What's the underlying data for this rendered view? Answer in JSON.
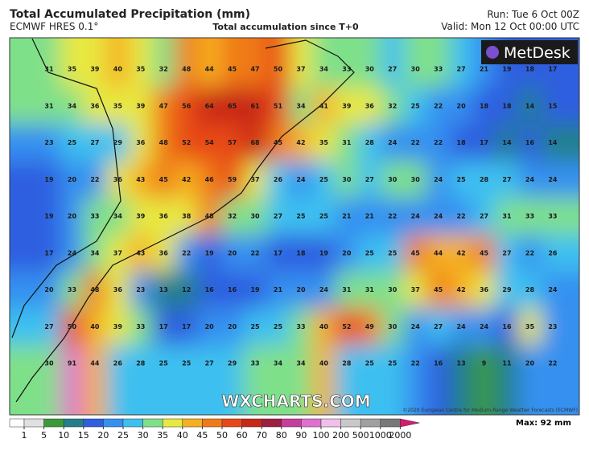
{
  "header": {
    "title": "Total Accumulated Precipitation (mm)",
    "model": "ECMWF HRES 0.1°",
    "subtitle": "Total accumulation since T+0",
    "run": "Run: Tue 6 Oct 00Z",
    "valid": "Valid: Mon 12 Oct 00:00 UTC"
  },
  "map": {
    "rows": [
      [
        31,
        35,
        39,
        40,
        35,
        32,
        48,
        44,
        45,
        47,
        50,
        37,
        34,
        33,
        30,
        27,
        30,
        33,
        27,
        21,
        19,
        18,
        17
      ],
      [
        31,
        34,
        36,
        35,
        39,
        47,
        56,
        64,
        65,
        61,
        51,
        34,
        41,
        39,
        36,
        32,
        25,
        22,
        20,
        18,
        18,
        14,
        15
      ],
      [
        23,
        25,
        27,
        29,
        36,
        48,
        52,
        54,
        57,
        68,
        45,
        42,
        35,
        31,
        28,
        24,
        22,
        22,
        18,
        17,
        14,
        16,
        14
      ],
      [
        19,
        20,
        22,
        36,
        43,
        45,
        42,
        46,
        59,
        37,
        26,
        24,
        25,
        30,
        27,
        30,
        30,
        24,
        25,
        28,
        27,
        24,
        24
      ],
      [
        19,
        20,
        33,
        34,
        39,
        36,
        38,
        48,
        32,
        30,
        27,
        25,
        25,
        21,
        21,
        22,
        24,
        24,
        22,
        27,
        31,
        33,
        33
      ],
      [
        17,
        24,
        34,
        37,
        43,
        36,
        22,
        19,
        20,
        22,
        17,
        18,
        19,
        20,
        25,
        25,
        45,
        44,
        42,
        45,
        27,
        22,
        26
      ],
      [
        20,
        33,
        48,
        36,
        23,
        13,
        12,
        16,
        16,
        19,
        21,
        20,
        24,
        31,
        31,
        30,
        37,
        45,
        42,
        36,
        29,
        28,
        24
      ],
      [
        27,
        50,
        40,
        39,
        33,
        17,
        17,
        20,
        20,
        25,
        25,
        33,
        40,
        52,
        49,
        30,
        24,
        27,
        24,
        24,
        16,
        35,
        23
      ],
      [
        30,
        91,
        44,
        26,
        28,
        25,
        25,
        27,
        29,
        33,
        34,
        34,
        40,
        28,
        25,
        25,
        22,
        16,
        13,
        9,
        11,
        20,
        22
      ]
    ]
  },
  "colorbar": {
    "ticks": [
      1,
      5,
      10,
      15,
      20,
      25,
      30,
      35,
      40,
      45,
      50,
      60,
      70,
      80,
      90,
      100,
      200,
      500,
      1000,
      2000
    ],
    "colors": [
      "#ffffff",
      "#e0e0e0",
      "#3a9a3a",
      "#23808a",
      "#2f5fe0",
      "#3590f0",
      "#3cc0f0",
      "#7fe08a",
      "#e8e840",
      "#f5b020",
      "#f07a18",
      "#e84818",
      "#c82818",
      "#a01c40",
      "#c83ca0",
      "#e070d0",
      "#f0c0e8",
      "#c8c8c8",
      "#a0a0a0",
      "#787878",
      "#d81b6e"
    ],
    "max_label": "Max: 92 mm"
  },
  "branding": {
    "logo": "MetDesk",
    "watermark": "WXCHARTS.COM",
    "credit": "©2020 European Centre for Medium-Range Weather Forecasts (ECMWF)"
  }
}
